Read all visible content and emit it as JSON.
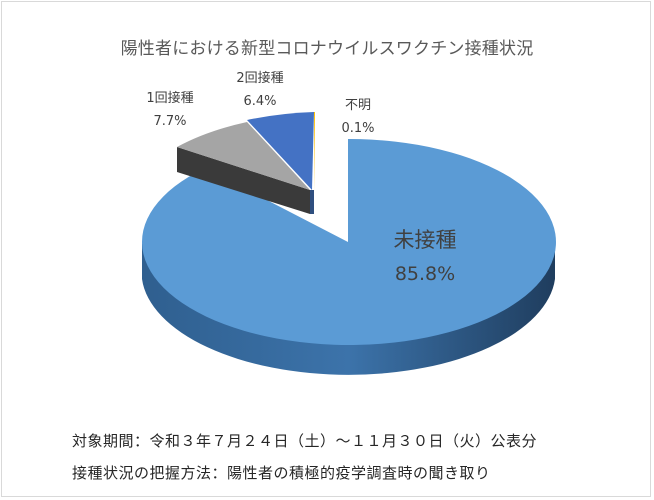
{
  "chart_data": {
    "type": "pie",
    "title": "陽性者における新型コロナウイルスワクチン接種状況",
    "slices": [
      {
        "label": "未接種",
        "value": 85.8,
        "value_label": "85.8%",
        "color": "#5b9bd5"
      },
      {
        "label": "不明",
        "value": 0.1,
        "value_label": "0.1%",
        "color": "#ffc000"
      },
      {
        "label": "2回接種",
        "value": 6.4,
        "value_label": "6.4%",
        "color": "#4472c4"
      },
      {
        "label": "1回接種",
        "value": 7.7,
        "value_label": "7.7%",
        "color": "#a5a5a5"
      }
    ],
    "legend": "none"
  },
  "notes": {
    "period": "対象期間：令和３年７月２４日（土）～１１月３０日（火）公表分",
    "method": "接種状況の把握方法：陽性者の積極的疫学調査時の聞き取り"
  }
}
